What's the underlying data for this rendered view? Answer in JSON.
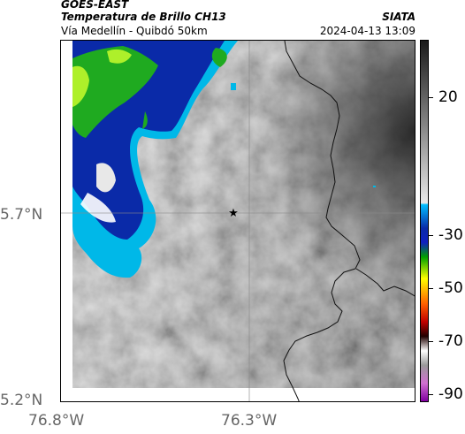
{
  "header": {
    "satellite": "GOES-EAST",
    "product": "Temperatura de Brillo CH13",
    "region": "Vía Medellín - Quibdó 50km",
    "org": "SIATA",
    "datetime": "2024-04-13 13:09"
  },
  "axes": {
    "lat_labels": [
      "5.7°N",
      "5.2°N"
    ],
    "lon_labels": [
      "76.8°W",
      "76.3°W"
    ]
  },
  "colorbar": {
    "tick_labels": [
      "20",
      "-30",
      "-50",
      "-70",
      "-90"
    ],
    "colors": [
      "#1a1a1a",
      "#8c8c8c",
      "#e0e0e0",
      "#00bfff",
      "#1020c0",
      "#00a000",
      "#ffff00",
      "#ff6000",
      "#c00000",
      "#ff00ff"
    ]
  },
  "map": {
    "marker": "star",
    "cloud_colors": {
      "deep_blue": "#0a2aa8",
      "cyan": "#00b8e8",
      "green": "#1faa20",
      "lime": "#aef02a"
    }
  }
}
